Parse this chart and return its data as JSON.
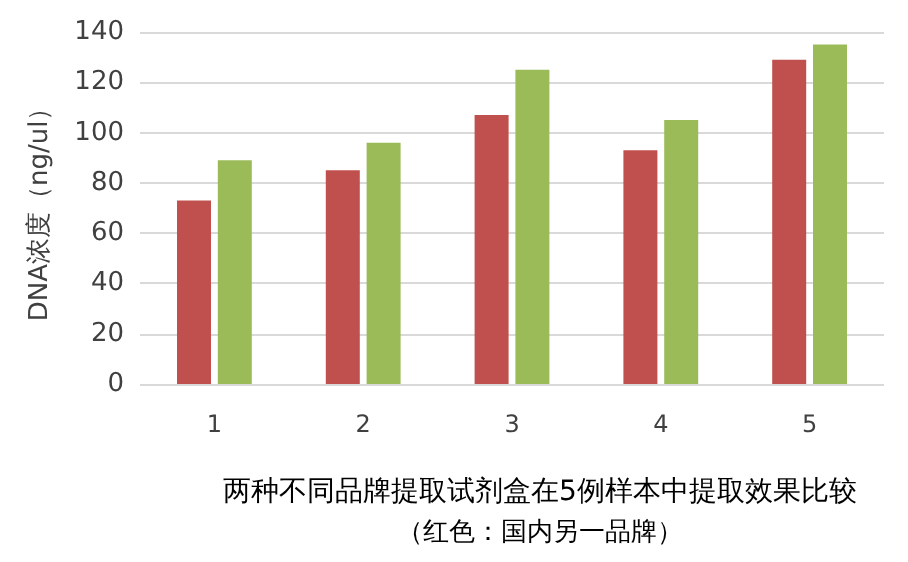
{
  "chart_data": {
    "type": "bar",
    "title": "两种不同品牌提取试剂盒在5例样本中提取效果比较",
    "subtitle": "（红色：国内另一品牌）",
    "ylabel": "DNA浓度（ng/ul）",
    "categories": [
      "1",
      "2",
      "3",
      "4",
      "5"
    ],
    "series": [
      {
        "color": "#c0504d",
        "values": [
          73,
          85,
          107,
          93,
          129
        ]
      },
      {
        "color": "#9bbb59",
        "values": [
          89,
          96,
          125,
          105,
          135
        ]
      }
    ],
    "ylim": [
      0,
      140
    ],
    "yticks": [
      0,
      20,
      40,
      60,
      80,
      100,
      120,
      140
    ],
    "grid": "y"
  }
}
